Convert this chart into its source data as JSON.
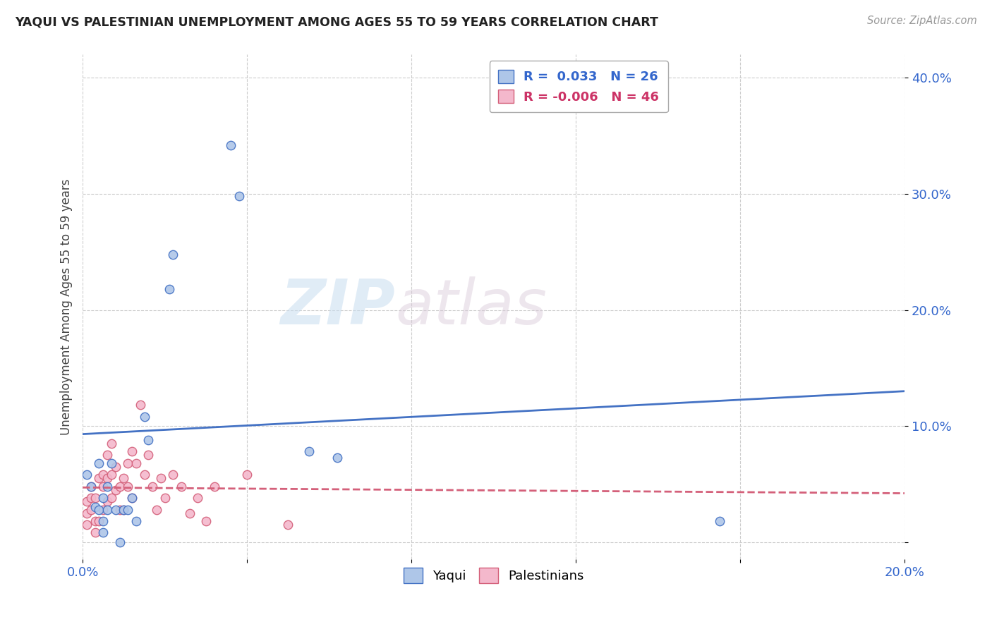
{
  "title": "YAQUI VS PALESTINIAN UNEMPLOYMENT AMONG AGES 55 TO 59 YEARS CORRELATION CHART",
  "source": "Source: ZipAtlas.com",
  "ylabel_text": "Unemployment Among Ages 55 to 59 years",
  "xlim": [
    0.0,
    0.2
  ],
  "ylim": [
    -0.015,
    0.42
  ],
  "xticks": [
    0.0,
    0.04,
    0.08,
    0.12,
    0.16,
    0.2
  ],
  "yticks": [
    0.0,
    0.1,
    0.2,
    0.3,
    0.4
  ],
  "xtick_labels": [
    "0.0%",
    "",
    "",
    "",
    "",
    "20.0%"
  ],
  "ytick_labels": [
    "",
    "10.0%",
    "20.0%",
    "30.0%",
    "40.0%"
  ],
  "background_color": "#ffffff",
  "grid_color": "#cccccc",
  "watermark_zip": "ZIP",
  "watermark_atlas": "atlas",
  "yaqui_color": "#aec6e8",
  "yaqui_edge_color": "#4472c4",
  "palestinian_color": "#f4b8cc",
  "palestinian_edge_color": "#d4607a",
  "yaqui_trendline_color": "#4472c4",
  "pal_trendline_color": "#d4607a",
  "yaqui_trend_y0": 0.093,
  "yaqui_trend_y1": 0.13,
  "pal_trend_y0": 0.047,
  "pal_trend_y1": 0.042,
  "yaqui_x": [
    0.001,
    0.002,
    0.003,
    0.004,
    0.004,
    0.005,
    0.005,
    0.005,
    0.006,
    0.006,
    0.007,
    0.008,
    0.009,
    0.01,
    0.011,
    0.012,
    0.013,
    0.015,
    0.016,
    0.021,
    0.022,
    0.036,
    0.038,
    0.055,
    0.062,
    0.155
  ],
  "yaqui_y": [
    0.058,
    0.048,
    0.03,
    0.028,
    0.068,
    0.038,
    0.018,
    0.008,
    0.028,
    0.048,
    0.068,
    0.028,
    0.0,
    0.028,
    0.028,
    0.038,
    0.018,
    0.108,
    0.088,
    0.218,
    0.248,
    0.342,
    0.298,
    0.078,
    0.073,
    0.018
  ],
  "pal_x": [
    0.001,
    0.001,
    0.001,
    0.002,
    0.002,
    0.002,
    0.003,
    0.003,
    0.003,
    0.004,
    0.004,
    0.005,
    0.005,
    0.005,
    0.006,
    0.006,
    0.006,
    0.007,
    0.007,
    0.007,
    0.008,
    0.008,
    0.009,
    0.009,
    0.01,
    0.01,
    0.011,
    0.011,
    0.012,
    0.012,
    0.013,
    0.014,
    0.015,
    0.016,
    0.017,
    0.018,
    0.019,
    0.02,
    0.022,
    0.024,
    0.026,
    0.028,
    0.03,
    0.032,
    0.04,
    0.05
  ],
  "pal_y": [
    0.025,
    0.015,
    0.035,
    0.038,
    0.028,
    0.048,
    0.018,
    0.038,
    0.008,
    0.055,
    0.018,
    0.048,
    0.028,
    0.058,
    0.075,
    0.055,
    0.035,
    0.038,
    0.058,
    0.085,
    0.065,
    0.045,
    0.048,
    0.028,
    0.055,
    0.028,
    0.048,
    0.068,
    0.038,
    0.078,
    0.068,
    0.118,
    0.058,
    0.075,
    0.048,
    0.028,
    0.055,
    0.038,
    0.058,
    0.048,
    0.025,
    0.038,
    0.018,
    0.048,
    0.058,
    0.015
  ]
}
